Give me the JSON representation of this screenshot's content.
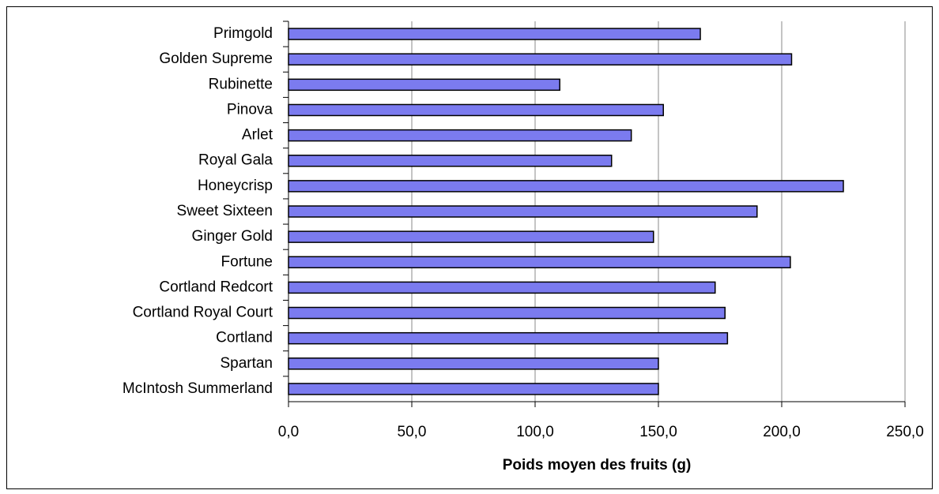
{
  "chart_data": {
    "type": "barh",
    "xlabel": "Poids moyen des fruits (g)",
    "categories": [
      "Primgold",
      "Golden Supreme",
      "Rubinette",
      "Pinova",
      "Arlet",
      "Royal Gala",
      "Honeycrisp",
      "Sweet Sixteen",
      "Ginger Gold",
      "Fortune",
      "Cortland Redcort",
      "Cortland Royal Court",
      "Cortland",
      "Spartan",
      "McIntosh Summerland"
    ],
    "values": [
      167,
      204,
      110,
      152,
      139,
      131,
      225,
      190,
      148,
      203.5,
      173,
      177,
      178,
      150,
      150
    ],
    "color": "#7b7bef",
    "xlim": [
      0,
      250
    ],
    "xticks": [
      {
        "value": 0,
        "label": "0,0"
      },
      {
        "value": 50,
        "label": "50,0"
      },
      {
        "value": 100,
        "label": "100,0"
      },
      {
        "value": 150,
        "label": "150,0"
      },
      {
        "value": 200,
        "label": "200,0"
      },
      {
        "value": 250,
        "label": "250,0"
      }
    ],
    "grid": true
  }
}
